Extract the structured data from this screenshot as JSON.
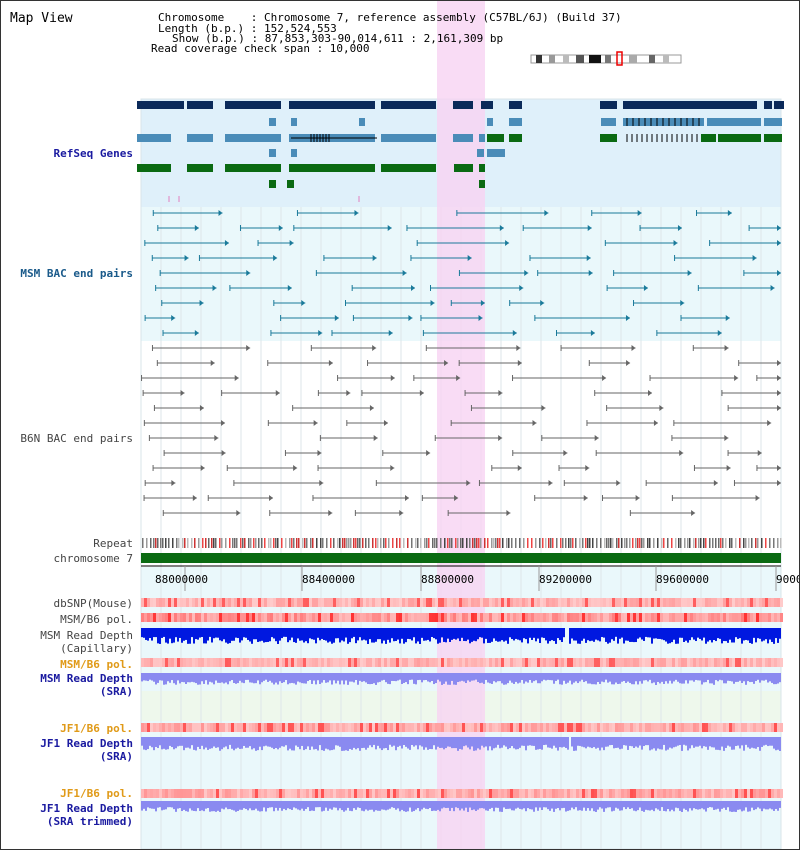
{
  "view_title": "Map View",
  "info": {
    "line1": "Chromosome    : Chromosome 7, reference assembly (C57BL/6J) (Build 37)",
    "line2": "Length (b.p.) : 152,524,553",
    "line3": "Show (b.p.) : 87,853,303-90,014,611 : 2,161,309 bp",
    "line4": "Read coverage check span : 10,000"
  },
  "tracks": {
    "refseq": "RefSeq Genes",
    "msm_bac": "MSM BAC end pairs",
    "b6n_bac": "B6N BAC end pairs",
    "repeat": "Repeat",
    "chromosome": "chromosome 7",
    "dbsnp": "dbSNP(Mouse)",
    "msm_b6_pol_1": "MSM/B6 pol.",
    "msm_depth_cap_1": "MSM Read Depth",
    "msm_depth_cap_2": "(Capillary)",
    "msm_b6_pol_2": "MSM/B6 pol.",
    "msm_depth_sra_1": "MSM Read Depth",
    "msm_depth_sra_2": "(SRA)",
    "jf1_b6_pol_1": "JF1/B6 pol.",
    "jf1_depth_sra_1": "JF1 Read Depth",
    "jf1_depth_sra_2": "(SRA)",
    "jf1_b6_pol_2": "JF1/B6 pol.",
    "jf1_depth_trim_1": "JF1 Read Depth",
    "jf1_depth_trim_2": "(SRA trimmed)"
  },
  "ruler": [
    "88000000",
    "88400000",
    "88800000",
    "89200000",
    "89600000",
    "9000"
  ],
  "colors": {
    "refseq_bg": "#dff0fa",
    "bac_bg": "#eaf8fb",
    "highlight": "#f7d3f2",
    "gene_dark": "#0b2a5a",
    "gene_mid": "#4a8cb8",
    "gene_green": "#0a6a12",
    "msm_bac": "#1a7a9a",
    "b6n_bac": "#666666",
    "chrom": "#0a6a12",
    "depth_dark": "#0018e0",
    "depth_light": "#8a8af0"
  }
}
